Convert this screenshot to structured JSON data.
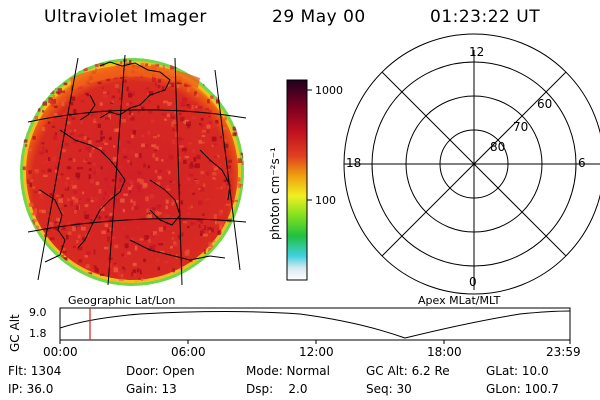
{
  "header": {
    "title": "Ultraviolet Imager",
    "date": "29 May 00",
    "time": "01:23:22 UT"
  },
  "colorbar": {
    "unit_label": "photon cm⁻²s⁻¹",
    "ticks": [
      "1000",
      "100"
    ]
  },
  "polar": {
    "mlt_labels": {
      "top": "12",
      "right": "6",
      "bottom": "0",
      "left": "18"
    },
    "lat_labels": [
      "60",
      "70",
      "80"
    ]
  },
  "panel_titles": {
    "left": "Geographic Lat/Lon",
    "right": "Apex MLat/MLT"
  },
  "altitude_plot": {
    "axis_label": "GC Alt",
    "y_ticks": [
      "9.0",
      "1.8"
    ],
    "x_ticks": [
      "00:00",
      "06:00",
      "12:00",
      "18:00",
      "23:59"
    ]
  },
  "info_rows": [
    [
      {
        "name": "Flt",
        "text": "Flt: 1304"
      },
      {
        "name": "Door",
        "text": "Door: Open"
      },
      {
        "name": "Mode",
        "text": "Mode: Normal"
      },
      {
        "name": "GC Alt",
        "text": "GC Alt: 6.2 Re"
      },
      {
        "name": "GLat",
        "text": "GLat: 10.0"
      }
    ],
    [
      {
        "name": "IP",
        "text": "IP: 36.0"
      },
      {
        "name": "Gain",
        "text": "Gain: 13"
      },
      {
        "name": "Dsp",
        "text": "Dsp:    2.0"
      },
      {
        "name": "Seq",
        "text": "Seq: 30"
      },
      {
        "name": "GLon",
        "text": "GLon: 100.7"
      }
    ]
  ],
  "colors": {
    "disk_base": "#d0202a",
    "disk_edge": "#e85010",
    "limb": "#60d040",
    "cursor": "#d02020"
  }
}
